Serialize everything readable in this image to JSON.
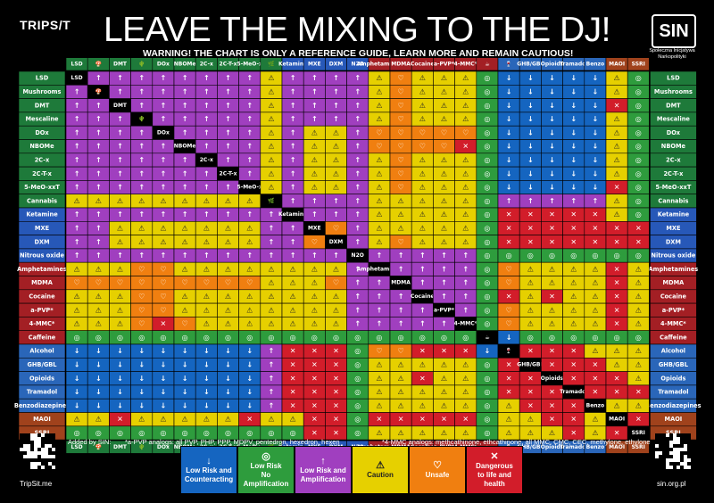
{
  "brand": "TRIPS/T",
  "title": "LEAVE THE MIXING TO THE DJ!",
  "warning": "WARNING! THE CHART IS ONLY A REFERENCE GUIDE, LEARN MORE AND REMAIN CAUTIOUS!",
  "sin_logo": {
    "mark": "SIN",
    "subtitle": "Społeczna Inicjatywa Narkopolityki"
  },
  "notes": {
    "added_by": "Added by SIN:",
    "apvp": "*a-PVP analogs: all PVP, PHP, PPP, MDPV, pentedron, hexedron, hexen",
    "mmc": "*4-MMC analogs: methcathinone, ethcathinone, all MMC, CMC, CEC, methylone, ethylone"
  },
  "qr_captions": {
    "left": "TripSit.me",
    "right": "sin.org.pl"
  },
  "colors": {
    "low_risk_counteracting": "#1565c0",
    "low_risk_no_amplification": "#2e9c3d",
    "low_risk_amplification": "#a03fbf",
    "caution": "#e6d000",
    "unsafe": "#f07f10",
    "dangerous": "#d21d2a",
    "group_psychedelic": "#1e7a3a",
    "group_dissociative": "#2758b8",
    "group_stimulant": "#a31f24",
    "group_depressant": "#2a66b9",
    "group_maoi": "#a0421c"
  },
  "legend": [
    {
      "key": "low_risk_counteracting",
      "symbol": "↓",
      "label_1": "Low Risk and",
      "label_2": "Counteracting"
    },
    {
      "key": "low_risk_no_amplification",
      "symbol": "◎",
      "label_1": "Low Risk",
      "label_2": "No Amplification"
    },
    {
      "key": "low_risk_amplification",
      "symbol": "↑",
      "label_1": "Low Risk and",
      "label_2": "Amplification"
    },
    {
      "key": "caution",
      "symbol": "⚠",
      "label_1": "Caution",
      "label_2": ""
    },
    {
      "key": "unsafe",
      "symbol": "♡",
      "label_1": "Unsafe",
      "label_2": ""
    },
    {
      "key": "dangerous",
      "symbol": "✕",
      "label_1": "Dangerous",
      "label_2": "to life and health"
    }
  ],
  "chart_data": {
    "type": "heatmap",
    "title": "LEAVE THE MIXING TO THE DJ!",
    "columns": [
      "LSD",
      "Mushrooms",
      "DMT",
      "Mescaline",
      "DOx",
      "NBOMe",
      "2C-x",
      "2C-T-x",
      "5-MeO-xxT",
      "Cannabis",
      "Ketamine",
      "MXE",
      "DXM",
      "Nitrous oxide",
      "Amphetamines",
      "MDMA",
      "Cocaine",
      "a-PVP*",
      "4-MMC*",
      "Caffeine",
      "Alcohol",
      "GHB/GBL",
      "Opioids",
      "Tramadol",
      "Benzodiazepines",
      "MAOI",
      "SSRI"
    ],
    "column_headers": [
      "LSD",
      "🍄",
      "DMT",
      "🌵",
      "DOx",
      "NBOMe",
      "2C-x",
      "2C-T-x",
      "5-MeO-x",
      "🌿",
      "Ketamine",
      "MXE",
      "DXM",
      "N2O",
      "Amphetamines",
      "MDMA",
      "Cocaine",
      "a-PVP*",
      "4-MMC*",
      "☕",
      "🍷",
      "GHB/GBL",
      "Opioids",
      "Tramadol",
      "Benzo",
      "MAOI",
      "SSRI"
    ],
    "rows": [
      "LSD",
      "Mushrooms",
      "DMT",
      "Mescaline",
      "DOx",
      "NBOMe",
      "2C-x",
      "2C-T-x",
      "5-MeO-xxT",
      "Cannabis",
      "Ketamine",
      "MXE",
      "DXM",
      "Nitrous oxide",
      "Amphetamines",
      "MDMA",
      "Cocaine",
      "a-PVP*",
      "4-MMC*",
      "Caffeine",
      "Alcohol",
      "GHB/GBL",
      "Opioids",
      "Tramadol",
      "Benzodiazepines",
      "MAOI",
      "SSRI"
    ],
    "groups": [
      "psychedelic",
      "psychedelic",
      "psychedelic",
      "psychedelic",
      "psychedelic",
      "psychedelic",
      "psychedelic",
      "psychedelic",
      "psychedelic",
      "psychedelic",
      "dissociative",
      "dissociative",
      "dissociative",
      "dissociative",
      "stimulant",
      "stimulant",
      "stimulant",
      "stimulant",
      "stimulant",
      "stimulant",
      "depressant",
      "depressant",
      "depressant",
      "depressant",
      "depressant",
      "maoi",
      "maoi"
    ],
    "legend_codes": {
      "B": "Low Risk and Counteracting",
      "G": "Low Risk No Amplification",
      "P": "Low Risk and Amplification",
      "Y": "Caution",
      "O": "Unsafe",
      "R": "Dangerous to life and health"
    },
    "matrix": [
      "-PPPPPPPPYPPPPYOYYYGBBBBBYG",
      "P-PPPPPPPYPPPPYOYYYGBBBBBYG",
      "PP-PPPPPPYPPPPYOYYYGBBBBBRG",
      "PPP-PPPPPYPPPPYOYYYGBBBBBYG",
      "PPPP-PPPPYPYYPOOOOOGBBBBBYG",
      "PPPPP-PPPYPYYPOOOORGBBBBBYG",
      "PPPPPP-PPYPYYPYOYYYGBBBBBYG",
      "PPPPPPP-PYPYYPYOYYYGBBBBBYG",
      "PPPPPPPP-YPYYPYOYYYGBBBBBRG",
      "YYYYYYYYY-PPPPYYYYYGPPPPPYG",
      "PPPPPPPPPP-PPPYYYYYGRRRRRYG",
      "PPYYYYYYYPP-OPYYYYYGRRRRRRR",
      "PPYYYYYYYPPO-PYOYYYGRRRRRRR",
      "PPPPPPPPPPPPP-PPPPPGGGGGGGG",
      "YYYOOYYYYYYYYP-PPPPGOYYYYRY",
      "OOOOOOOOOYYYOPP-PPPGOYYYYRY",
      "YYYOOYYYYYYYYPPP-PPGRYRYYRY",
      "YYYOOYYYYYYYYPPPP-PGOYYYYRY",
      "YYYOROYYYYYYYPPPPP-GOYYYYRY",
      "GGGGGGGGGGGGGGGGGGG-BGGGGGG",
      "BBBBBBBBBPRRRGOORRRB-RRRYYY",
      "BBBBBBBBBPRRRGYYYYYGR-RRRYY",
      "BBBBBBBBBPRRRGYYRYYGRR-RRRY",
      "BBBBBBBBBPRRRGYYYYYGRRR-RRR",
      "BBBBBBBBBPRRRGYYYYYGYRRR-YY",
      "YYRYYYYYRYYRRGRRRRRGYYRRY-R",
      "GGGGGGGGGGGRRGYYYYYGYYYRYR-"
    ]
  }
}
